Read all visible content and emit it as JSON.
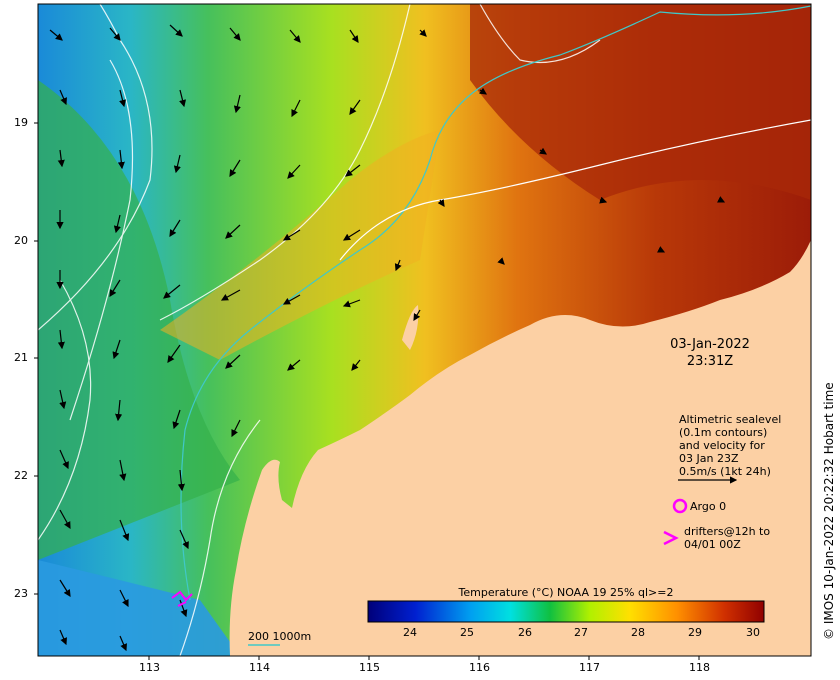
{
  "map": {
    "x_ticks": [
      "113",
      "114",
      "115",
      "116",
      "117",
      "118"
    ],
    "y_ticks": [
      "19",
      "20",
      "21",
      "22",
      "23"
    ],
    "date": "03-Jan-2022",
    "time": "23:31Z",
    "credit": "© IMOS 10-Jan-2022 20:22:32 Hobart time",
    "legend": {
      "lines": [
        "Altimetric sealevel",
        "(0.1m contours)",
        "and velocity for",
        "03 Jan 23Z",
        "0.5m/s (1kt 24h)"
      ],
      "argo_label": "Argo 0",
      "drifters_line1": "drifters@12h to",
      "drifters_line2": "04/01 00Z"
    },
    "depth_label": "200  1000m",
    "colorbar": {
      "title": "Temperature (°C) NOAA 19 25% ql>=2",
      "ticks": [
        "24",
        "25",
        "26",
        "27",
        "28",
        "29",
        "30"
      ],
      "range": [
        23.2,
        30.3
      ]
    },
    "colors": {
      "land": "#fcd0a4",
      "contour": "#ffffff",
      "isobath_200": "#40c8c8",
      "argo": "#ff00ff",
      "drifter": "#ff00ff"
    }
  }
}
